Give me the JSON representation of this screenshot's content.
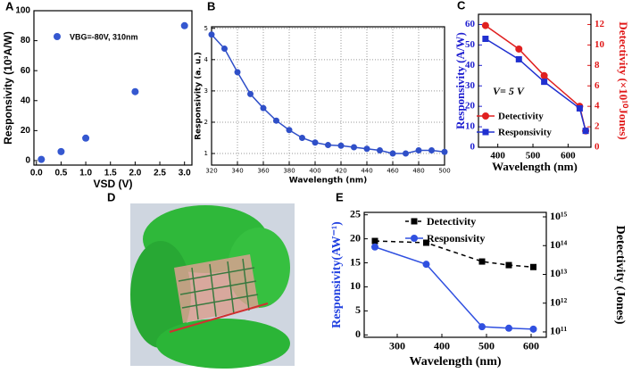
{
  "chart_data": [
    {
      "type": "scatter",
      "panel_label": "A",
      "xlabel": "VSD (V)",
      "ylabel": "Responsivity (10³A/W)",
      "x": [
        0.1,
        0.5,
        1.0,
        2.0,
        3.0
      ],
      "series": [
        {
          "name": "VBG=-80V, 310nm",
          "color": "#3558d0",
          "marker": "circle",
          "values": [
            0.8,
            6,
            15,
            46,
            90
          ]
        }
      ],
      "xlim": [
        -0.05,
        3.15
      ],
      "xticks": [
        {
          "value": 0,
          "label": "0.0"
        },
        0.5,
        {
          "value": 1,
          "label": "1.0"
        },
        1.5,
        {
          "value": 2,
          "label": "2.0"
        },
        2.5,
        {
          "value": 3,
          "label": "3.0"
        }
      ],
      "ylim": [
        -3,
        100
      ],
      "yticks": [
        0,
        20,
        40,
        60,
        80,
        100
      ],
      "legend": "upper left"
    },
    {
      "type": "line",
      "panel_label": "B",
      "xlabel": "Wavelength (nm)",
      "ylabel": "Responsivity (a. u.)",
      "x": [
        320,
        330,
        340,
        350,
        360,
        370,
        380,
        390,
        400,
        410,
        420,
        430,
        440,
        450,
        460,
        470,
        480,
        490,
        500
      ],
      "series": [
        {
          "name": "Responsivity",
          "color": "#2f4fc8",
          "marker": "circle",
          "values": [
            4.8,
            4.35,
            3.6,
            2.9,
            2.45,
            2.05,
            1.75,
            1.5,
            1.35,
            1.27,
            1.25,
            1.2,
            1.15,
            1.1,
            1.0,
            1.0,
            1.1,
            1.1,
            1.05
          ]
        }
      ],
      "xlim": [
        320,
        500
      ],
      "xticks": [
        320,
        340,
        360,
        380,
        400,
        420,
        440,
        460,
        480,
        500
      ],
      "ylim": [
        0.63,
        5.05
      ],
      "yticks": [
        1,
        2,
        3,
        4,
        5
      ],
      "grid": true
    },
    {
      "type": "line",
      "panel_label": "C",
      "xlabel": "Wavelength (nm)",
      "ylabel": "Responsivity (A/W)",
      "y2label": "Detectivity (×10¹⁰Jones)",
      "ylabel_color": "#2020d0",
      "y2label_color": "#e01818",
      "ytick_color": "#2020d0",
      "y2tick_color": "#e01818",
      "annotation": "V= 5 V",
      "x": [
        365,
        460,
        532,
        633,
        650
      ],
      "series": [
        {
          "name": "Detectivity",
          "color": "#e02020",
          "marker": "circle",
          "axis": "y2",
          "values": [
            11.9,
            9.6,
            7.0,
            4.0,
            1.6
          ]
        },
        {
          "name": "Responsivity",
          "color": "#2030d0",
          "marker": "square",
          "values": [
            53,
            43,
            32,
            19,
            8
          ]
        }
      ],
      "xlim": [
        345,
        665
      ],
      "xticks": [
        400,
        500,
        600
      ],
      "ylim": [
        0,
        65
      ],
      "yticks": [
        0,
        10,
        20,
        30,
        40,
        50,
        60
      ],
      "y2lim": [
        0,
        13
      ],
      "y2ticks": [
        0,
        2,
        4,
        6,
        8,
        10,
        12
      ],
      "legend": "center"
    },
    {
      "type": "image",
      "panel_label": "D"
    },
    {
      "type": "line",
      "panel_label": "E",
      "xlabel": "Wavelength (nm)",
      "ylabel": "Responsivity(AW⁻¹)",
      "y2label": "Detectivity (Jones)",
      "ylabel_color": "#2040e0",
      "y2label_color": "#000000",
      "x": [
        250,
        365,
        490,
        550,
        605
      ],
      "series": [
        {
          "name": "Detectivity",
          "color": "#000000",
          "marker": "square",
          "dash": true,
          "axis": "y2",
          "values": [
            145000000000000.0,
            126000000000000.0,
            28000000000000.0,
            21000000000000.0,
            18000000000000.0
          ]
        },
        {
          "name": "Responsivity",
          "color": "#3050e0",
          "marker": "circle",
          "values": [
            18.3,
            14.7,
            1.7,
            1.4,
            1.2
          ]
        }
      ],
      "xlim": [
        226,
        634
      ],
      "xticks": [
        300,
        400,
        500,
        600
      ],
      "ylim": [
        -0.5,
        25.5
      ],
      "yticks": [
        0,
        5,
        10,
        15,
        20,
        25
      ],
      "y2lim": [
        65000000000.0,
        1430000000000000.0
      ],
      "y2log": true,
      "y2ticks": [
        {
          "value": 100000000000.0,
          "label": "10¹¹"
        },
        {
          "value": 1000000000000.0,
          "label": "10¹²"
        },
        {
          "value": 10000000000000.0,
          "label": "10¹³"
        },
        {
          "value": 100000000000000.0,
          "label": "10¹⁴"
        },
        {
          "value": 1000000000000000.0,
          "label": "10¹⁵"
        }
      ],
      "legend": "upper right"
    }
  ]
}
